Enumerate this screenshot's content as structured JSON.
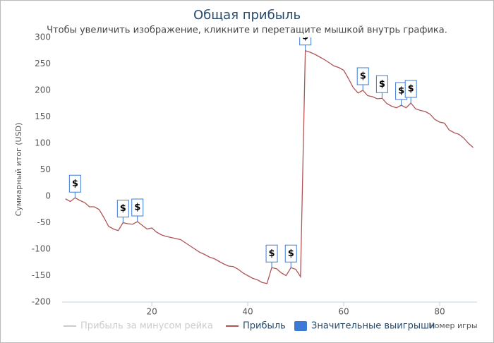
{
  "chart_data": {
    "type": "line",
    "title": "Общая прибыль",
    "subtitle": "Чтобы увеличить изображение, кликните и перетащите мышкой внутрь графика.",
    "y_label": "Суммарный итог (USD)",
    "x_label": "Номер игры",
    "xlim": [
      1.3,
      87.8
    ],
    "xticks": [
      20,
      40,
      60,
      80
    ],
    "ylim": [
      -200,
      300
    ],
    "yticks": [
      -200,
      -150,
      -100,
      -50,
      0,
      50,
      100,
      150,
      200,
      250,
      300
    ],
    "series": [
      {
        "name": "Прибыль за минусом рейка",
        "color": "#cccccc",
        "visible": false,
        "x": [],
        "values": []
      },
      {
        "name": "Прибыль",
        "color": "#b05555",
        "visible": true,
        "x": [
          2,
          3,
          4,
          5,
          6,
          7,
          8,
          9,
          10,
          11,
          12,
          13,
          14,
          15,
          16,
          17,
          18,
          19,
          20,
          21,
          22,
          23,
          24,
          25,
          26,
          27,
          28,
          29,
          30,
          31,
          32,
          33,
          34,
          35,
          36,
          37,
          38,
          39,
          40,
          41,
          42,
          43,
          44,
          45,
          46,
          47,
          48,
          49,
          50,
          51,
          52,
          53,
          54,
          55,
          56,
          57,
          58,
          59,
          60,
          61,
          62,
          63,
          64,
          65,
          66,
          67,
          68,
          69,
          70,
          71,
          72,
          73,
          74,
          75,
          76,
          77,
          78,
          79,
          80,
          81,
          82,
          83,
          84,
          85,
          86,
          87
        ],
        "values": [
          -5,
          -10,
          -3,
          -8,
          -12,
          -20,
          -20,
          -25,
          -40,
          -57,
          -62,
          -65,
          -50,
          -52,
          -53,
          -48,
          -55,
          -62,
          -60,
          -68,
          -73,
          -76,
          -78,
          -80,
          -82,
          -88,
          -94,
          -100,
          -106,
          -110,
          -115,
          -118,
          -123,
          -128,
          -132,
          -133,
          -138,
          -145,
          -150,
          -155,
          -158,
          -163,
          -165,
          -135,
          -137,
          -145,
          -150,
          -135,
          -138,
          -152,
          275,
          272,
          268,
          263,
          258,
          252,
          246,
          243,
          238,
          222,
          205,
          195,
          200,
          190,
          188,
          184,
          185,
          175,
          170,
          167,
          172,
          167,
          176,
          165,
          162,
          160,
          155,
          145,
          140,
          138,
          125,
          120,
          117,
          110,
          100,
          92
        ]
      }
    ],
    "flags": {
      "name": "Значительные выигрыши",
      "color": "#3d7ad6",
      "label": "$",
      "x": [
        4,
        14,
        17,
        45,
        49,
        52,
        64,
        68,
        72,
        74
      ],
      "values": [
        -3,
        -50,
        -48,
        -135,
        -135,
        275,
        200,
        185,
        172,
        176
      ]
    }
  }
}
